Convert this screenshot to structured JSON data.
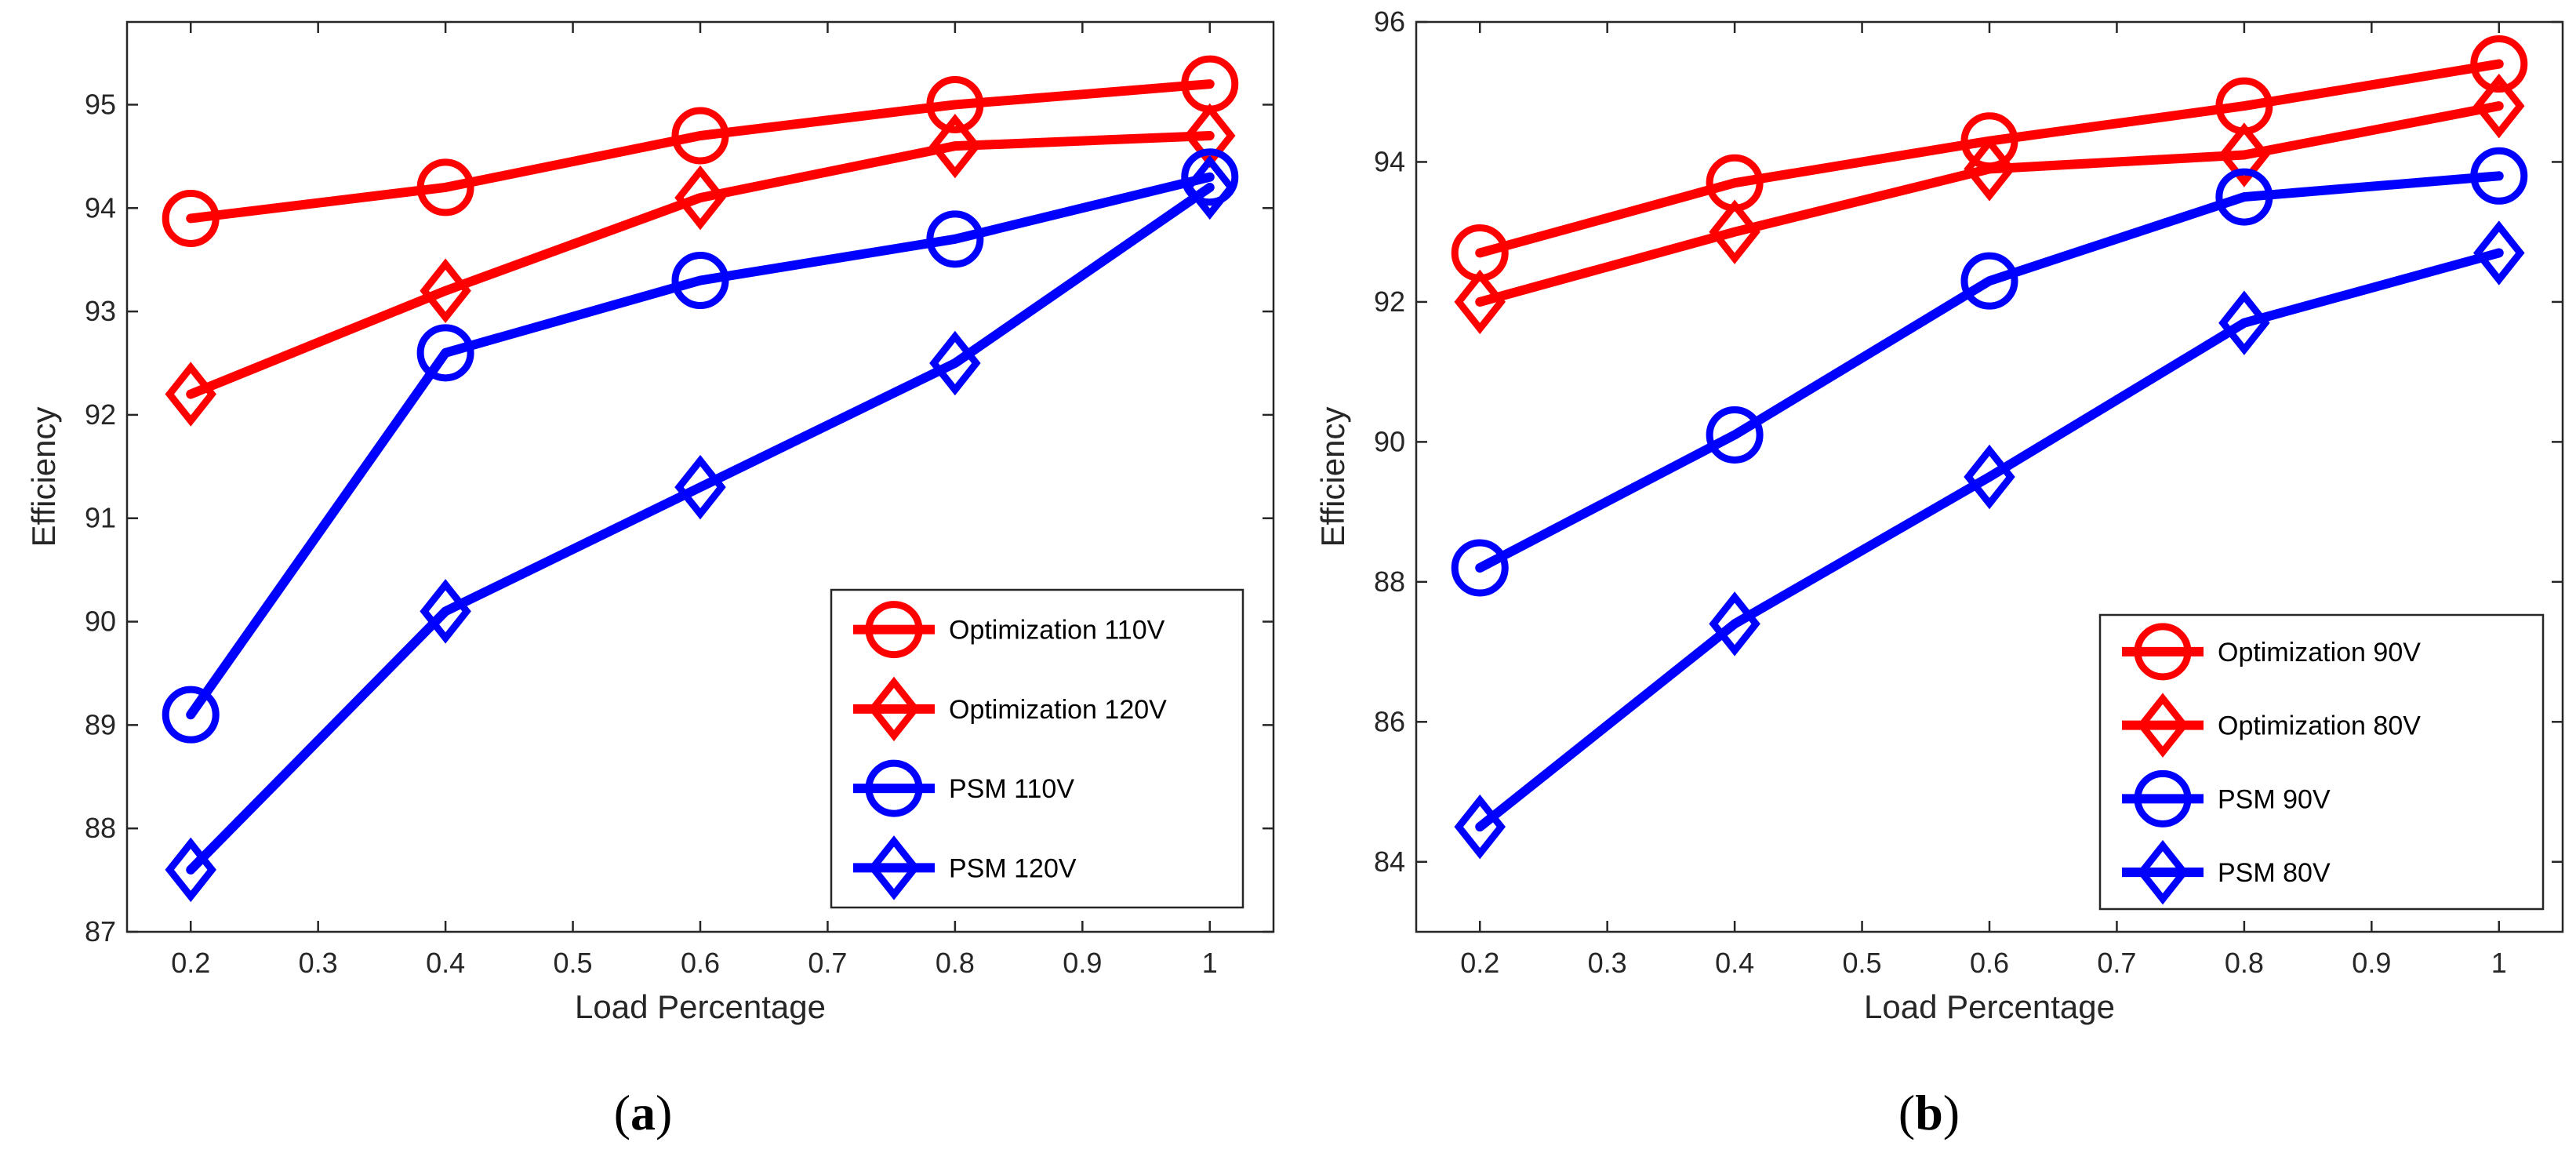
{
  "colors": {
    "red": "#ff0000",
    "blue": "#0000ff",
    "axis": "#262626"
  },
  "chart_data": [
    {
      "type": "line",
      "panel_label": "a",
      "xlabel": "Load Percentage",
      "ylabel": "Efficiency",
      "xlim": [
        0.15,
        1.05
      ],
      "ylim": [
        87,
        95.8
      ],
      "xticks": [
        0.2,
        0.3,
        0.4,
        0.5,
        0.6,
        0.7,
        0.8,
        0.9,
        1
      ],
      "xtick_labels": [
        "0.2",
        "0.3",
        "0.4",
        "0.5",
        "0.6",
        "0.7",
        "0.8",
        "0.9",
        "1"
      ],
      "yticks": [
        87,
        88,
        89,
        90,
        91,
        92,
        93,
        94,
        95
      ],
      "ytick_labels": [
        "87",
        "88",
        "89",
        "90",
        "91",
        "92",
        "93",
        "94",
        "95"
      ],
      "grid": false,
      "legend_position": "bottom-right",
      "x": [
        0.2,
        0.4,
        0.6,
        0.8,
        1
      ],
      "series": [
        {
          "name": "Optimization 110V",
          "color": "#ff0000",
          "marker": "circle",
          "values": [
            93.9,
            94.2,
            94.7,
            95.0,
            95.2
          ]
        },
        {
          "name": "Optimization 120V",
          "color": "#ff0000",
          "marker": "diamond",
          "values": [
            92.2,
            93.2,
            94.1,
            94.6,
            94.7
          ]
        },
        {
          "name": "PSM 110V",
          "color": "#0000ff",
          "marker": "circle",
          "values": [
            89.1,
            92.6,
            93.3,
            93.7,
            94.3
          ]
        },
        {
          "name": "PSM 120V",
          "color": "#0000ff",
          "marker": "diamond",
          "values": [
            87.6,
            90.1,
            91.3,
            92.5,
            94.2
          ]
        }
      ]
    },
    {
      "type": "line",
      "panel_label": "b",
      "xlabel": "Load Percentage",
      "ylabel": "Efficiency",
      "xlim": [
        0.15,
        1.05
      ],
      "ylim": [
        83,
        96
      ],
      "xticks": [
        0.2,
        0.3,
        0.4,
        0.5,
        0.6,
        0.7,
        0.8,
        0.9,
        1
      ],
      "xtick_labels": [
        "0.2",
        "0.3",
        "0.4",
        "0.5",
        "0.6",
        "0.7",
        "0.8",
        "0.9",
        "1"
      ],
      "yticks": [
        84,
        86,
        88,
        90,
        92,
        94,
        96
      ],
      "ytick_labels": [
        "84",
        "86",
        "88",
        "90",
        "92",
        "94",
        "96"
      ],
      "grid": false,
      "legend_position": "bottom-right",
      "x": [
        0.2,
        0.4,
        0.6,
        0.8,
        1
      ],
      "series": [
        {
          "name": "Optimization  90V",
          "color": "#ff0000",
          "marker": "circle",
          "values": [
            92.7,
            93.7,
            94.3,
            94.8,
            95.4
          ]
        },
        {
          "name": "Optimization  80V",
          "color": "#ff0000",
          "marker": "diamond",
          "values": [
            92.0,
            93.0,
            93.9,
            94.1,
            94.8
          ]
        },
        {
          "name": "PSM 90V",
          "color": "#0000ff",
          "marker": "circle",
          "values": [
            88.2,
            90.1,
            92.3,
            93.5,
            93.8
          ]
        },
        {
          "name": "PSM 80V",
          "color": "#0000ff",
          "marker": "diamond",
          "values": [
            84.5,
            87.4,
            89.5,
            91.7,
            92.7
          ]
        }
      ]
    }
  ]
}
